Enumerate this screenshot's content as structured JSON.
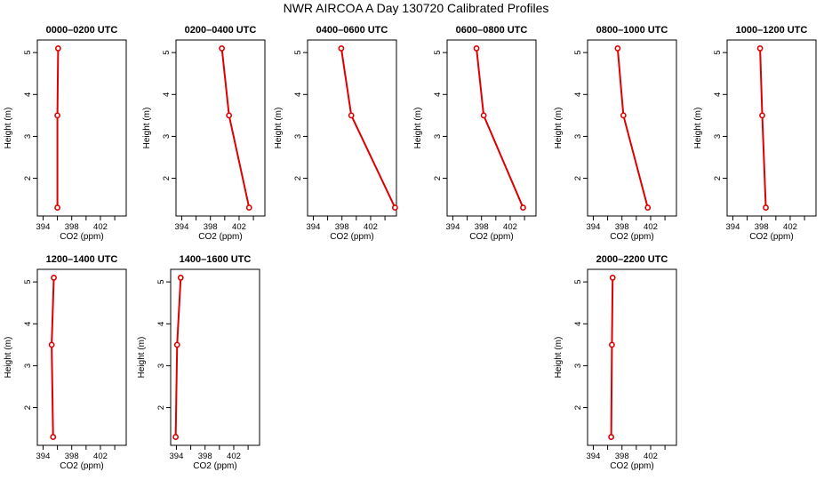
{
  "title": "NWR AIRCOA A  Day 130720  Calibrated Profiles",
  "colors": {
    "line": "#dd0000",
    "marker_fill": "#ffffff",
    "axes": "#000000"
  },
  "chart_data": [
    {
      "type": "line",
      "title": "0000–0200 UTC",
      "xlabel": "CO2 (ppm)",
      "ylabel": "Height (m)",
      "xlim": [
        393.2,
        405.6
      ],
      "ylim": [
        1.1,
        5.3
      ],
      "xticks": [
        394,
        398,
        402
      ],
      "yticks": [
        2,
        3,
        4,
        5
      ],
      "x": [
        396.0,
        396.0,
        396.1
      ],
      "y": [
        1.3,
        3.5,
        5.1
      ]
    },
    {
      "type": "line",
      "title": "0200–0400 UTC",
      "xlabel": "CO2 (ppm)",
      "ylabel": "Height (m)",
      "xlim": [
        393.2,
        405.6
      ],
      "ylim": [
        1.1,
        5.3
      ],
      "xticks": [
        394,
        398,
        402
      ],
      "yticks": [
        2,
        3,
        4,
        5
      ],
      "x": [
        403.4,
        400.6,
        399.6
      ],
      "y": [
        1.3,
        3.5,
        5.1
      ]
    },
    {
      "type": "line",
      "title": "0400–0600 UTC",
      "xlabel": "CO2 (ppm)",
      "ylabel": "Height (m)",
      "xlim": [
        393.2,
        405.6
      ],
      "ylim": [
        1.1,
        5.3
      ],
      "xticks": [
        394,
        398,
        402
      ],
      "yticks": [
        2,
        3,
        4,
        5
      ],
      "x": [
        405.4,
        399.3,
        397.9
      ],
      "y": [
        1.3,
        3.5,
        5.1
      ]
    },
    {
      "type": "line",
      "title": "0600–0800 UTC",
      "xlabel": "CO2 (ppm)",
      "ylabel": "Height (m)",
      "xlim": [
        393.2,
        405.6
      ],
      "ylim": [
        1.1,
        5.3
      ],
      "xticks": [
        394,
        398,
        402
      ],
      "yticks": [
        2,
        3,
        4,
        5
      ],
      "x": [
        403.8,
        398.3,
        397.3
      ],
      "y": [
        1.3,
        3.5,
        5.1
      ]
    },
    {
      "type": "line",
      "title": "0800–1000 UTC",
      "xlabel": "CO2 (ppm)",
      "ylabel": "Height (m)",
      "xlim": [
        393.2,
        405.6
      ],
      "ylim": [
        1.1,
        5.3
      ],
      "xticks": [
        394,
        398,
        402
      ],
      "yticks": [
        2,
        3,
        4,
        5
      ],
      "x": [
        401.6,
        398.2,
        397.4
      ],
      "y": [
        1.3,
        3.5,
        5.1
      ]
    },
    {
      "type": "line",
      "title": "1000–1200 UTC",
      "xlabel": "CO2 (ppm)",
      "ylabel": "Height (m)",
      "xlim": [
        393.2,
        405.6
      ],
      "ylim": [
        1.1,
        5.3
      ],
      "xticks": [
        394,
        398,
        402
      ],
      "yticks": [
        2,
        3,
        4,
        5
      ],
      "x": [
        398.6,
        398.1,
        397.8
      ],
      "y": [
        1.3,
        3.5,
        5.1
      ]
    },
    {
      "type": "line",
      "title": "1200–1400 UTC",
      "xlabel": "CO2 (ppm)",
      "ylabel": "Height (m)",
      "xlim": [
        393.2,
        405.6
      ],
      "ylim": [
        1.1,
        5.3
      ],
      "xticks": [
        394,
        398,
        402
      ],
      "yticks": [
        2,
        3,
        4,
        5
      ],
      "x": [
        395.4,
        395.2,
        395.5
      ],
      "y": [
        1.3,
        3.5,
        5.1
      ]
    },
    {
      "type": "line",
      "title": "1400–1600 UTC",
      "xlabel": "CO2 (ppm)",
      "ylabel": "Height (m)",
      "xlim": [
        393.2,
        405.6
      ],
      "ylim": [
        1.1,
        5.3
      ],
      "xticks": [
        394,
        398,
        402
      ],
      "yticks": [
        2,
        3,
        4,
        5
      ],
      "x": [
        393.9,
        394.1,
        394.6
      ],
      "y": [
        1.3,
        3.5,
        5.1
      ]
    },
    {
      "type": "line",
      "title": "2000–2200 UTC",
      "xlabel": "CO2 (ppm)",
      "ylabel": "Height (m)",
      "xlim": [
        393.2,
        405.6
      ],
      "ylim": [
        1.1,
        5.3
      ],
      "xticks": [
        394,
        398,
        402
      ],
      "yticks": [
        2,
        3,
        4,
        5
      ],
      "x": [
        396.5,
        396.6,
        396.7
      ],
      "y": [
        1.3,
        3.5,
        5.1
      ]
    }
  ]
}
